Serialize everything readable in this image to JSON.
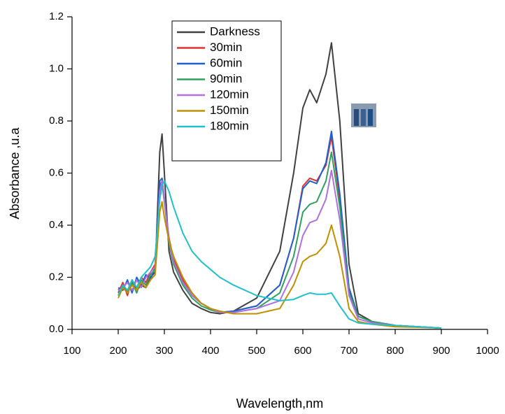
{
  "chart_data": {
    "type": "line",
    "x_label": "Wavelength,nm",
    "y_label": "Absorbance ,u.a",
    "xlim": [
      100,
      1000
    ],
    "xticks": [
      100,
      200,
      300,
      400,
      500,
      600,
      700,
      800,
      900,
      1000
    ],
    "ylim": [
      0,
      1.2
    ],
    "yticks": [
      {
        "value": 0,
        "label": "0.0"
      },
      0.2,
      0.4,
      0.6,
      0.8,
      {
        "value": 1,
        "label": "1.0"
      },
      1.2
    ],
    "legend": "upper center",
    "x": [
      200,
      210,
      220,
      230,
      240,
      250,
      260,
      270,
      280,
      290,
      295,
      300,
      310,
      320,
      340,
      360,
      380,
      400,
      420,
      450,
      500,
      550,
      580,
      600,
      615,
      630,
      650,
      662,
      680,
      700,
      720,
      750,
      800,
      850,
      900
    ],
    "series": [
      {
        "name": "Darkness",
        "color": "#404040",
        "values": [
          0.15,
          0.17,
          0.14,
          0.18,
          0.15,
          0.17,
          0.16,
          0.2,
          0.22,
          0.68,
          0.75,
          0.6,
          0.3,
          0.22,
          0.15,
          0.1,
          0.08,
          0.065,
          0.06,
          0.07,
          0.12,
          0.3,
          0.6,
          0.85,
          0.92,
          0.87,
          0.98,
          1.1,
          0.8,
          0.25,
          0.06,
          0.03,
          0.015,
          0.01,
          0.005
        ]
      },
      {
        "name": "30min",
        "color": "#e03030",
        "values": [
          0.14,
          0.18,
          0.13,
          0.19,
          0.16,
          0.2,
          0.18,
          0.22,
          0.25,
          0.55,
          0.57,
          0.5,
          0.35,
          0.27,
          0.19,
          0.14,
          0.1,
          0.08,
          0.065,
          0.07,
          0.09,
          0.17,
          0.35,
          0.55,
          0.58,
          0.57,
          0.63,
          0.74,
          0.5,
          0.15,
          0.05,
          0.03,
          0.015,
          0.01,
          0.005
        ]
      },
      {
        "name": "60min",
        "color": "#2060d0",
        "values": [
          0.16,
          0.15,
          0.19,
          0.14,
          0.2,
          0.17,
          0.21,
          0.19,
          0.24,
          0.57,
          0.58,
          0.5,
          0.34,
          0.26,
          0.18,
          0.13,
          0.1,
          0.08,
          0.065,
          0.07,
          0.09,
          0.17,
          0.35,
          0.54,
          0.57,
          0.56,
          0.64,
          0.76,
          0.52,
          0.16,
          0.05,
          0.03,
          0.015,
          0.01,
          0.005
        ]
      },
      {
        "name": "90min",
        "color": "#30a060",
        "values": [
          0.13,
          0.17,
          0.15,
          0.18,
          0.14,
          0.19,
          0.17,
          0.21,
          0.23,
          0.52,
          0.56,
          0.49,
          0.33,
          0.25,
          0.17,
          0.12,
          0.09,
          0.075,
          0.065,
          0.065,
          0.08,
          0.14,
          0.28,
          0.45,
          0.48,
          0.49,
          0.57,
          0.68,
          0.47,
          0.14,
          0.05,
          0.03,
          0.015,
          0.01,
          0.005
        ]
      },
      {
        "name": "120min",
        "color": "#b070e0",
        "values": [
          0.15,
          0.16,
          0.18,
          0.15,
          0.19,
          0.16,
          0.2,
          0.22,
          0.24,
          0.53,
          0.57,
          0.5,
          0.34,
          0.26,
          0.18,
          0.13,
          0.1,
          0.08,
          0.065,
          0.065,
          0.08,
          0.11,
          0.22,
          0.36,
          0.41,
          0.42,
          0.5,
          0.61,
          0.42,
          0.13,
          0.04,
          0.025,
          0.015,
          0.01,
          0.005
        ]
      },
      {
        "name": "150min",
        "color": "#c09000",
        "values": [
          0.12,
          0.16,
          0.14,
          0.17,
          0.15,
          0.18,
          0.16,
          0.19,
          0.21,
          0.45,
          0.49,
          0.43,
          0.34,
          0.28,
          0.2,
          0.14,
          0.1,
          0.08,
          0.07,
          0.06,
          0.06,
          0.08,
          0.17,
          0.26,
          0.28,
          0.29,
          0.33,
          0.4,
          0.28,
          0.08,
          0.03,
          0.02,
          0.01,
          0.008,
          0.005
        ]
      },
      {
        "name": "180min",
        "color": "#20c0c8",
        "values": [
          0.13,
          0.17,
          0.15,
          0.19,
          0.16,
          0.2,
          0.22,
          0.24,
          0.28,
          0.5,
          0.55,
          0.57,
          0.53,
          0.47,
          0.37,
          0.3,
          0.26,
          0.23,
          0.2,
          0.17,
          0.13,
          0.11,
          0.115,
          0.13,
          0.14,
          0.135,
          0.135,
          0.14,
          0.09,
          0.04,
          0.025,
          0.02,
          0.015,
          0.01,
          0.005
        ]
      }
    ]
  }
}
